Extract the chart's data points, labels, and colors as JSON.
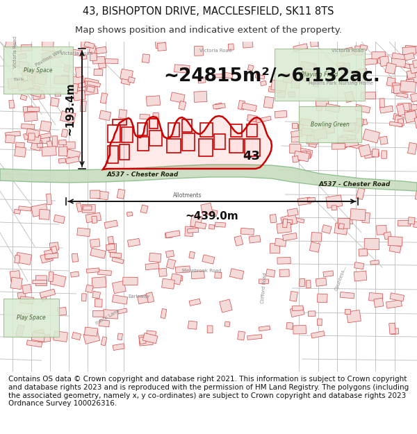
{
  "title_line1": "43, BISHOPTON DRIVE, MACCLESFIELD, SK11 8TS",
  "title_line2": "Map shows position and indicative extent of the property.",
  "annotation_area": "~24815m²/~6.132ac.",
  "annotation_width": "~439.0m",
  "annotation_height": "~193.4m",
  "annotation_label": "43",
  "road_label_left": "A537 - Chester Road",
  "road_label_right": "A537 - Chester Road",
  "road_sublabel": "Allotments",
  "footer_text": "Contains OS data © Crown copyright and database right 2021. This information is subject to Crown copyright and database rights 2023 and is reproduced with the permission of HM Land Registry. The polygons (including the associated geometry, namely x, y co-ordinates) are subject to Crown copyright and database rights 2023 Ordnance Survey 100026316.",
  "title_fontsize": 10.5,
  "subtitle_fontsize": 9.5,
  "footer_fontsize": 7.5,
  "map_bg": "#f5f0ee",
  "building_fill": "#f5dada",
  "building_edge": "#d44444",
  "street_gray": "#bbbbbb",
  "street_red": "#dd8888",
  "road_green_fill": "#c8ddc0",
  "road_green_edge": "#88bb88",
  "prop_edge": "#cc0000",
  "prop_fill": "#ff000015",
  "arrow_color": "#111111",
  "label_color": "#111111",
  "area_label_color": "#111111",
  "park_fill": "#d8ead0",
  "park_edge": "#99bb88"
}
